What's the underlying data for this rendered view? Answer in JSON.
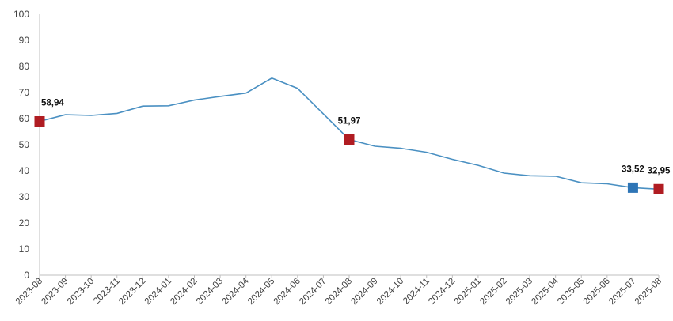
{
  "chart_data": {
    "type": "line",
    "categories": [
      "2023-08",
      "2023-09",
      "2023-10",
      "2023-11",
      "2023-12",
      "2024-01",
      "2024-02",
      "2024-03",
      "2024-04",
      "2024-05",
      "2024-06",
      "2024-07",
      "2024-08",
      "2024-09",
      "2024-10",
      "2024-11",
      "2024-12",
      "2025-01",
      "2025-02",
      "2025-03",
      "2025-04",
      "2025-05",
      "2025-06",
      "2025-07",
      "2025-08"
    ],
    "series": [
      {
        "values": [
          58.94,
          61.5,
          61.2,
          62.0,
          64.8,
          64.9,
          67.1,
          68.5,
          69.8,
          75.5,
          71.6,
          61.8,
          51.97,
          49.4,
          48.6,
          47.1,
          44.4,
          42.1,
          39.1,
          38.1,
          37.9,
          35.4,
          35.0,
          33.52,
          32.95
        ],
        "color": "#4a90c2"
      }
    ],
    "highlighted_points": [
      {
        "category": "2023-08",
        "value": 58.94,
        "label": "58,94",
        "color": "#b01c22"
      },
      {
        "category": "2024-08",
        "value": 51.97,
        "label": "51,97",
        "color": "#b01c22"
      },
      {
        "category": "2025-07",
        "value": 33.52,
        "label": "33,52",
        "color": "#2e75b6"
      },
      {
        "category": "2025-08",
        "value": 32.95,
        "label": "32,95",
        "color": "#b01c22"
      }
    ],
    "yticks": [
      "0",
      "10",
      "20",
      "30",
      "40",
      "50",
      "60",
      "70",
      "80",
      "90",
      "100"
    ],
    "ylim": [
      0,
      100
    ],
    "grid": false,
    "legend": "none"
  }
}
